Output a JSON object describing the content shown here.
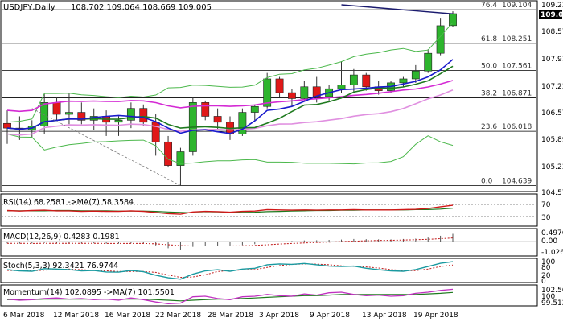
{
  "chart_data": [
    {
      "type": "candlestick",
      "pane": "price",
      "title": "USDJPY,Daily",
      "ohlc_header": "108.702 109.064 108.669 109.005",
      "ylim": [
        104.57,
        109.23
      ],
      "y_ticks": [
        "109.230",
        "108.570",
        "107.910",
        "107.230",
        "106.570",
        "105.890",
        "105.230",
        "104.570"
      ],
      "last_price": "109.005",
      "x_tick_labels": [
        "6 Mar 2018",
        "12 Mar 2018",
        "16 Mar 2018",
        "22 Mar 2018",
        "28 Mar 2018",
        "3 Apr 2018",
        "9 Apr 2018",
        "13 Apr 2018",
        "19 Apr 2018"
      ],
      "candles": [
        {
          "o": 106.22,
          "h": 106.55,
          "l": 105.7,
          "c": 106.1
        },
        {
          "o": 106.1,
          "h": 106.4,
          "l": 105.8,
          "c": 106.05
        },
        {
          "o": 106.05,
          "h": 106.3,
          "l": 105.85,
          "c": 106.15
        },
        {
          "o": 106.15,
          "h": 107.0,
          "l": 105.95,
          "c": 106.75
        },
        {
          "o": 106.75,
          "h": 106.9,
          "l": 106.3,
          "c": 106.45
        },
        {
          "o": 106.45,
          "h": 107.0,
          "l": 106.2,
          "c": 106.5
        },
        {
          "o": 106.5,
          "h": 106.75,
          "l": 106.2,
          "c": 106.3
        },
        {
          "o": 106.3,
          "h": 106.6,
          "l": 106.05,
          "c": 106.4
        },
        {
          "o": 106.4,
          "h": 106.55,
          "l": 105.9,
          "c": 106.25
        },
        {
          "o": 106.25,
          "h": 106.4,
          "l": 105.9,
          "c": 106.3
        },
        {
          "o": 106.3,
          "h": 106.75,
          "l": 106.1,
          "c": 106.6
        },
        {
          "o": 106.6,
          "h": 106.7,
          "l": 106.15,
          "c": 106.25
        },
        {
          "o": 106.25,
          "h": 106.45,
          "l": 105.4,
          "c": 105.75
        },
        {
          "o": 105.75,
          "h": 105.9,
          "l": 105.1,
          "c": 105.15
        },
        {
          "o": 105.15,
          "h": 105.6,
          "l": 104.64,
          "c": 105.5
        },
        {
          "o": 105.5,
          "h": 106.9,
          "l": 105.4,
          "c": 106.75
        },
        {
          "o": 106.75,
          "h": 106.8,
          "l": 106.3,
          "c": 106.4
        },
        {
          "o": 106.4,
          "h": 106.6,
          "l": 106.05,
          "c": 106.25
        },
        {
          "o": 106.25,
          "h": 106.4,
          "l": 105.8,
          "c": 105.95
        },
        {
          "o": 105.95,
          "h": 106.6,
          "l": 105.9,
          "c": 106.5
        },
        {
          "o": 106.5,
          "h": 106.7,
          "l": 106.3,
          "c": 106.65
        },
        {
          "o": 106.65,
          "h": 107.5,
          "l": 106.6,
          "c": 107.35
        },
        {
          "o": 107.35,
          "h": 107.4,
          "l": 106.9,
          "c": 107.0
        },
        {
          "o": 107.0,
          "h": 107.1,
          "l": 106.65,
          "c": 106.85
        },
        {
          "o": 106.85,
          "h": 107.3,
          "l": 106.8,
          "c": 107.15
        },
        {
          "o": 107.15,
          "h": 107.4,
          "l": 106.75,
          "c": 106.9
        },
        {
          "o": 106.9,
          "h": 107.2,
          "l": 106.8,
          "c": 107.1
        },
        {
          "o": 107.1,
          "h": 107.8,
          "l": 107.0,
          "c": 107.2
        },
        {
          "o": 107.2,
          "h": 107.6,
          "l": 107.0,
          "c": 107.45
        },
        {
          "o": 107.45,
          "h": 107.5,
          "l": 107.05,
          "c": 107.15
        },
        {
          "o": 107.15,
          "h": 107.3,
          "l": 106.95,
          "c": 107.05
        },
        {
          "o": 107.05,
          "h": 107.3,
          "l": 107.0,
          "c": 107.25
        },
        {
          "o": 107.25,
          "h": 107.4,
          "l": 107.15,
          "c": 107.35
        },
        {
          "o": 107.35,
          "h": 107.7,
          "l": 107.25,
          "c": 107.55
        },
        {
          "o": 107.55,
          "h": 108.1,
          "l": 107.5,
          "c": 108.0
        },
        {
          "o": 108.0,
          "h": 108.9,
          "l": 107.95,
          "c": 108.7
        },
        {
          "o": 108.702,
          "h": 109.064,
          "l": 108.669,
          "c": 109.005
        }
      ],
      "fibonacci": [
        {
          "label": "76.4",
          "value": "109.104"
        },
        {
          "label": "61.8",
          "value": "108.251"
        },
        {
          "label": "50.0",
          "value": "107.561"
        },
        {
          "label": "38.2",
          "value": "106.871"
        },
        {
          "label": "23.6",
          "value": "106.018"
        },
        {
          "label": "0.0",
          "value": "104.639"
        }
      ],
      "colors": {
        "up": "#2db52d",
        "down": "#e01818",
        "ma_blue": "#1a1acc",
        "ma_green": "#1f7a1f",
        "ma_magenta": "#d42ad4",
        "ma_pink": "#e090e0",
        "bands": "#4cb84c",
        "fibo": "#000000",
        "trend": "#777777",
        "navy": "#1a1a6e"
      }
    },
    {
      "type": "line",
      "pane": "rsi",
      "label": "RSI(14) 68.2581 ->MA(7) 58.3584",
      "levels": [
        "70",
        "30"
      ],
      "ylim": [
        0,
        100
      ],
      "series": [
        {
          "values": [
            50,
            48,
            50,
            51,
            49,
            49,
            47,
            48,
            47,
            47,
            49,
            47,
            43,
            39,
            37,
            45,
            47,
            46,
            44,
            47,
            48,
            53,
            52,
            51,
            52,
            51,
            52,
            52,
            53,
            52,
            52,
            52,
            53,
            54,
            57,
            63,
            68.26
          ]
        },
        {
          "values": [
            49,
            49,
            49,
            49,
            50,
            50,
            49,
            49,
            49,
            48,
            48,
            48,
            47,
            45,
            43,
            42,
            42,
            42,
            43,
            43,
            44,
            46,
            47,
            48,
            49,
            50,
            50,
            51,
            51,
            52,
            52,
            52,
            52,
            53,
            53,
            55,
            58.36
          ]
        }
      ]
    },
    {
      "type": "bar",
      "pane": "macd",
      "label": "MACD(12,26,9) 0.4283 0.1981",
      "y_ticks": [
        "0.4976",
        "0.00",
        "-1.026"
      ],
      "histogram": [
        -0.1,
        -0.12,
        -0.11,
        -0.08,
        -0.1,
        -0.09,
        -0.11,
        -0.1,
        -0.12,
        -0.12,
        -0.1,
        -0.12,
        -0.22,
        -0.38,
        -0.45,
        -0.3,
        -0.25,
        -0.24,
        -0.27,
        -0.2,
        -0.15,
        -0.05,
        0.0,
        0.03,
        0.06,
        0.07,
        0.09,
        0.11,
        0.14,
        0.13,
        0.12,
        0.12,
        0.14,
        0.16,
        0.22,
        0.32,
        0.43
      ],
      "signal": [
        -0.1,
        -0.1,
        -0.11,
        -0.1,
        -0.1,
        -0.1,
        -0.1,
        -0.1,
        -0.11,
        -0.11,
        -0.11,
        -0.11,
        -0.13,
        -0.18,
        -0.23,
        -0.25,
        -0.25,
        -0.25,
        -0.25,
        -0.24,
        -0.22,
        -0.18,
        -0.14,
        -0.11,
        -0.08,
        -0.05,
        -0.03,
        0.0,
        0.02,
        0.04,
        0.06,
        0.07,
        0.08,
        0.1,
        0.12,
        0.16,
        0.198
      ]
    },
    {
      "type": "line",
      "pane": "stoch",
      "label": "Stoch(5,3,3) 92.3421 76.9744",
      "y_ticks": [
        "100",
        "80",
        "20",
        "0"
      ],
      "ylim": [
        0,
        100
      ],
      "series": [
        {
          "values": [
            55,
            50,
            48,
            60,
            58,
            56,
            50,
            52,
            45,
            44,
            52,
            46,
            30,
            18,
            12,
            35,
            50,
            55,
            48,
            58,
            62,
            78,
            82,
            80,
            84,
            78,
            72,
            70,
            72,
            62,
            55,
            50,
            48,
            56,
            70,
            85,
            92.34
          ]
        },
        {
          "values": [
            52,
            51,
            50,
            53,
            55,
            58,
            55,
            53,
            50,
            47,
            47,
            47,
            43,
            31,
            20,
            22,
            32,
            47,
            51,
            54,
            56,
            66,
            74,
            80,
            82,
            81,
            78,
            73,
            71,
            68,
            63,
            56,
            51,
            51,
            58,
            70,
            76.97
          ]
        }
      ]
    },
    {
      "type": "line",
      "pane": "momentum",
      "label": "Momentum(14) 102.0895 ->MA(7) 101.5501",
      "y_ticks": [
        "102.5668",
        "100",
        "99.5124"
      ],
      "ylim": [
        99.5124,
        102.5668
      ],
      "series": [
        {
          "values": [
            100.4,
            100.2,
            100.3,
            100.5,
            100.6,
            100.4,
            100.5,
            100.3,
            100.4,
            100.2,
            100.6,
            100.3,
            99.9,
            99.6,
            99.7,
            100.8,
            100.9,
            100.5,
            100.3,
            100.8,
            100.9,
            101.2,
            101.0,
            100.9,
            101.3,
            101.1,
            101.5,
            101.6,
            101.2,
            101.0,
            101.1,
            100.9,
            101.0,
            101.4,
            101.6,
            101.9,
            102.09
          ]
        },
        {
          "values": [
            100.3,
            100.3,
            100.3,
            100.4,
            100.4,
            100.4,
            100.4,
            100.4,
            100.4,
            100.4,
            100.4,
            100.4,
            100.3,
            100.2,
            100.1,
            100.2,
            100.3,
            100.4,
            100.4,
            100.5,
            100.6,
            100.7,
            100.8,
            100.9,
            101.0,
            101.0,
            101.1,
            101.2,
            101.2,
            101.2,
            101.2,
            101.2,
            101.2,
            101.2,
            101.3,
            101.4,
            101.55
          ]
        }
      ]
    }
  ]
}
